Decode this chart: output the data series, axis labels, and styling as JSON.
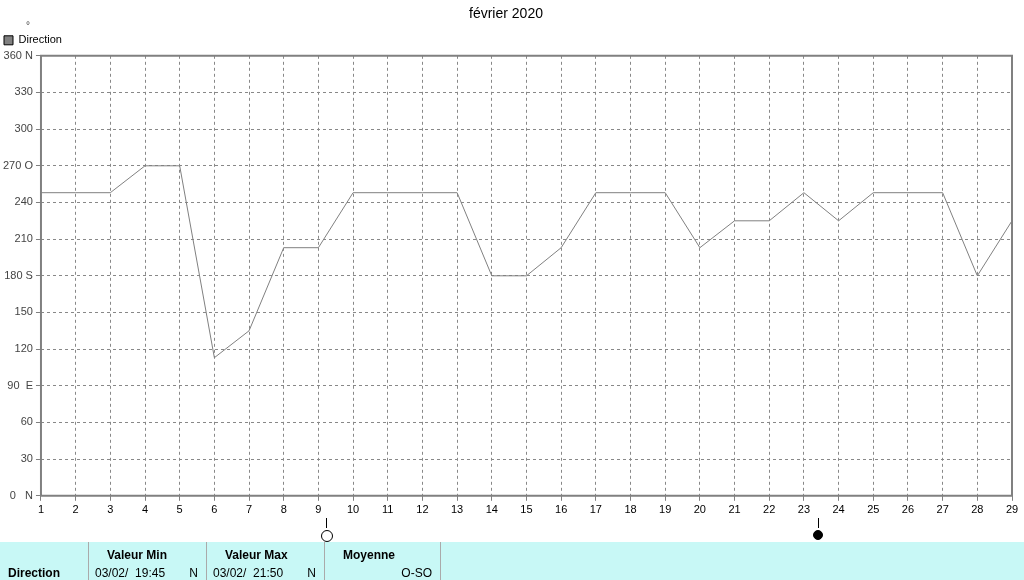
{
  "chart_data": {
    "type": "line",
    "title": "février 2020",
    "ylabel": "°",
    "x": [
      1,
      2,
      3,
      4,
      5,
      6,
      7,
      8,
      9,
      10,
      11,
      12,
      13,
      14,
      15,
      16,
      17,
      18,
      19,
      20,
      21,
      22,
      23,
      24,
      25,
      26,
      27,
      28,
      29
    ],
    "series": [
      {
        "name": "Direction",
        "color": "#808080",
        "values": [
          248,
          248,
          248,
          270,
          270,
          113,
          135,
          203,
          203,
          248,
          248,
          248,
          248,
          180,
          180,
          203,
          248,
          248,
          248,
          203,
          225,
          225,
          248,
          225,
          248,
          248,
          248,
          180,
          225
        ]
      }
    ],
    "xlim": [
      1,
      29
    ],
    "xticks": [
      1,
      2,
      3,
      4,
      5,
      6,
      7,
      8,
      9,
      10,
      11,
      12,
      13,
      14,
      15,
      16,
      17,
      18,
      19,
      20,
      21,
      22,
      23,
      24,
      25,
      26,
      27,
      28,
      29
    ],
    "ylim": [
      0,
      360
    ],
    "yticks": [
      {
        "value": 0,
        "label": "0   N"
      },
      30,
      60,
      {
        "value": 90,
        "label": "90  E"
      },
      120,
      150,
      {
        "value": 180,
        "label": "180 S"
      },
      210,
      240,
      {
        "value": 270,
        "label": "270 O"
      },
      300,
      330,
      {
        "value": 360,
        "label": "360 N"
      }
    ],
    "grid": true,
    "legend": "top left",
    "marker": "none",
    "line_style": "solid",
    "annotations": [
      "Direction",
      "Valeur Min",
      "03/02/  19:45",
      "N",
      "Valeur Max",
      "03/02/  21:50",
      "N",
      "Moyenne",
      "O-SO"
    ]
  }
}
